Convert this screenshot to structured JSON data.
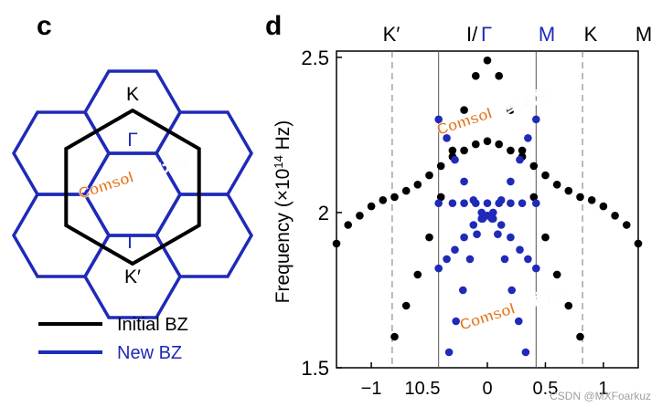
{
  "panel_c": {
    "label": "c",
    "k_label": "K",
    "kprime_label": "K′",
    "gamma_top": "Γ",
    "gamma_bottom": "Γ",
    "legend": [
      {
        "label": "Initial BZ",
        "color": "#000000"
      },
      {
        "label": "New BZ",
        "color": "#1f2ab8"
      }
    ]
  },
  "panel_d": {
    "label": "d",
    "top_labels": {
      "kprime": "K′",
      "i_part": "I/",
      "gamma": "Γ",
      "m": "M",
      "k": "K",
      "m2": "M"
    }
  },
  "watermarks": [
    "Comsol微纳光学",
    "Comsol微纳光学",
    "Comsol微纳光学"
  ],
  "credit": "CSDN @MXFoarkuz",
  "colors": {
    "black": "#000000",
    "blue": "#1f2ab8",
    "watermark": "#e8761e"
  },
  "chart_data": {
    "type": "scatter",
    "title": "",
    "xlabel": "",
    "ylabel": "Frequency (×10¹⁴ Hz)",
    "ylabel_parts": {
      "pre": "Frequency (×10",
      "exp": "14",
      "post": " Hz)"
    },
    "xlim": [
      -1.3,
      1.3
    ],
    "ylim": [
      1.5,
      2.52
    ],
    "x_ticks": [
      -1,
      0,
      0.5,
      1
    ],
    "x_tick_labels": [
      "−1",
      "0",
      "0.5",
      "1"
    ],
    "extra_tick_text": "10.5",
    "y_ticks": [
      1.5,
      2,
      2.5
    ],
    "y_tick_labels": [
      "1.5",
      "2",
      "2.5"
    ],
    "solid_vlines": [
      -0.42,
      0.42
    ],
    "dashed_vlines": [
      -0.82,
      0.82
    ],
    "series": [
      {
        "name": "black-outer",
        "color": "#000000",
        "points": [
          [
            -1.3,
            1.9
          ],
          [
            -1.2,
            1.96
          ],
          [
            -1.1,
            1.99
          ],
          [
            -1.0,
            2.02
          ],
          [
            -0.9,
            2.04
          ],
          [
            -0.8,
            2.05
          ],
          [
            -0.7,
            2.07
          ],
          [
            -0.6,
            2.09
          ],
          [
            -0.5,
            2.12
          ],
          [
            -0.4,
            2.15
          ],
          [
            -0.3,
            2.18
          ],
          [
            -0.2,
            2.2
          ],
          [
            -0.1,
            2.22
          ],
          [
            0.0,
            2.23
          ],
          [
            0.1,
            2.22
          ],
          [
            0.2,
            2.2
          ],
          [
            0.3,
            2.18
          ],
          [
            0.4,
            2.15
          ],
          [
            0.5,
            2.12
          ],
          [
            0.6,
            2.09
          ],
          [
            0.7,
            2.07
          ],
          [
            0.8,
            2.05
          ],
          [
            0.9,
            2.04
          ],
          [
            1.0,
            2.02
          ],
          [
            1.1,
            1.99
          ],
          [
            1.2,
            1.96
          ],
          [
            1.3,
            1.9
          ]
        ]
      },
      {
        "name": "black-inner",
        "color": "#000000",
        "points": [
          [
            -0.8,
            1.6
          ],
          [
            -0.7,
            1.7
          ],
          [
            -0.6,
            1.8
          ],
          [
            -0.5,
            1.92
          ],
          [
            -0.4,
            2.05
          ],
          [
            -0.3,
            2.2
          ],
          [
            -0.2,
            2.33
          ],
          [
            -0.1,
            2.44
          ],
          [
            0.0,
            2.49
          ],
          [
            0.1,
            2.44
          ],
          [
            0.2,
            2.33
          ],
          [
            0.3,
            2.2
          ],
          [
            0.4,
            2.05
          ],
          [
            0.5,
            1.92
          ],
          [
            0.6,
            1.8
          ],
          [
            0.7,
            1.7
          ],
          [
            0.8,
            1.6
          ]
        ]
      },
      {
        "name": "blue-upper",
        "color": "#1f2ab8",
        "points": [
          [
            -0.42,
            2.3
          ],
          [
            -0.35,
            2.24
          ],
          [
            -0.28,
            2.17
          ],
          [
            -0.2,
            2.1
          ],
          [
            -0.12,
            2.04
          ],
          [
            -0.05,
            2.0
          ],
          [
            0.0,
            1.99
          ],
          [
            0.05,
            2.0
          ],
          [
            0.12,
            2.04
          ],
          [
            0.2,
            2.1
          ],
          [
            0.28,
            2.17
          ],
          [
            0.35,
            2.24
          ],
          [
            0.42,
            2.3
          ]
        ]
      },
      {
        "name": "blue-lower",
        "color": "#1f2ab8",
        "points": [
          [
            -0.42,
            1.82
          ],
          [
            -0.35,
            1.85
          ],
          [
            -0.28,
            1.88
          ],
          [
            -0.2,
            1.92
          ],
          [
            -0.12,
            1.96
          ],
          [
            -0.05,
            1.98
          ],
          [
            0.0,
            1.99
          ],
          [
            0.05,
            1.98
          ],
          [
            0.12,
            1.96
          ],
          [
            0.2,
            1.92
          ],
          [
            0.28,
            1.88
          ],
          [
            0.35,
            1.85
          ],
          [
            0.42,
            1.82
          ]
        ]
      },
      {
        "name": "blue-flat",
        "color": "#1f2ab8",
        "points": [
          [
            -0.42,
            2.03
          ],
          [
            -0.3,
            2.03
          ],
          [
            -0.2,
            2.03
          ],
          [
            -0.1,
            2.03
          ],
          [
            0.0,
            2.03
          ],
          [
            0.1,
            2.03
          ],
          [
            0.2,
            2.03
          ],
          [
            0.3,
            2.03
          ],
          [
            0.42,
            2.03
          ]
        ]
      },
      {
        "name": "blue-steep",
        "color": "#1f2ab8",
        "points": [
          [
            -0.33,
            1.55
          ],
          [
            -0.27,
            1.65
          ],
          [
            -0.21,
            1.75
          ],
          [
            -0.15,
            1.85
          ],
          [
            -0.09,
            1.93
          ],
          [
            -0.04,
            1.98
          ],
          [
            0.0,
            1.99
          ],
          [
            0.04,
            1.98
          ],
          [
            0.09,
            1.93
          ],
          [
            0.15,
            1.85
          ],
          [
            0.21,
            1.75
          ],
          [
            0.27,
            1.65
          ],
          [
            0.33,
            1.55
          ]
        ]
      }
    ]
  }
}
